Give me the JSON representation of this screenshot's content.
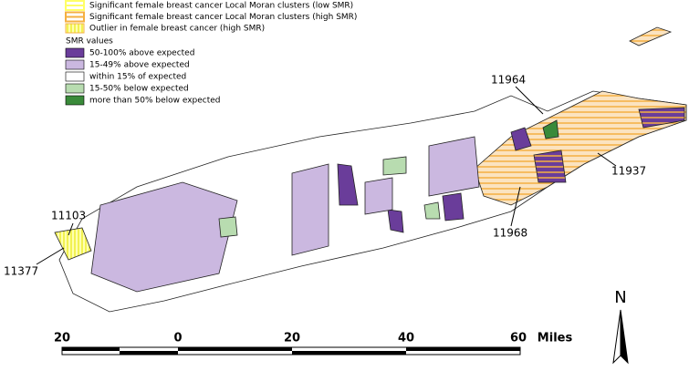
{
  "legend": {
    "clusters": [
      {
        "label": "Significant female breast cancer Local Moran clusters (low SMR)",
        "color": "#ffff66"
      },
      {
        "label": "Significant female breast cancer Local Moran clusters (high SMR)",
        "color": "#f5b041"
      },
      {
        "label": "Outlier in female breast cancer (high SMR)",
        "color": "#f5b041"
      }
    ],
    "smr_title": "SMR values",
    "smr_classes": [
      {
        "label": "50-100% above expected",
        "color": "#6a3d9a"
      },
      {
        "label": "15-49% above expected",
        "color": "#cbb8e0"
      },
      {
        "label": "within 15% of expected",
        "color": "#ffffff"
      },
      {
        "label": "15-50% below expected",
        "color": "#b8dcb0"
      },
      {
        "label": "more than 50% below expected",
        "color": "#3a8a3a"
      }
    ]
  },
  "annotations": [
    "11964",
    "11937",
    "11968",
    "11103",
    "11377"
  ],
  "scale_bar": {
    "labels": [
      "20",
      "0",
      "20",
      "40",
      "60"
    ],
    "unit": "Miles"
  },
  "north": "N"
}
